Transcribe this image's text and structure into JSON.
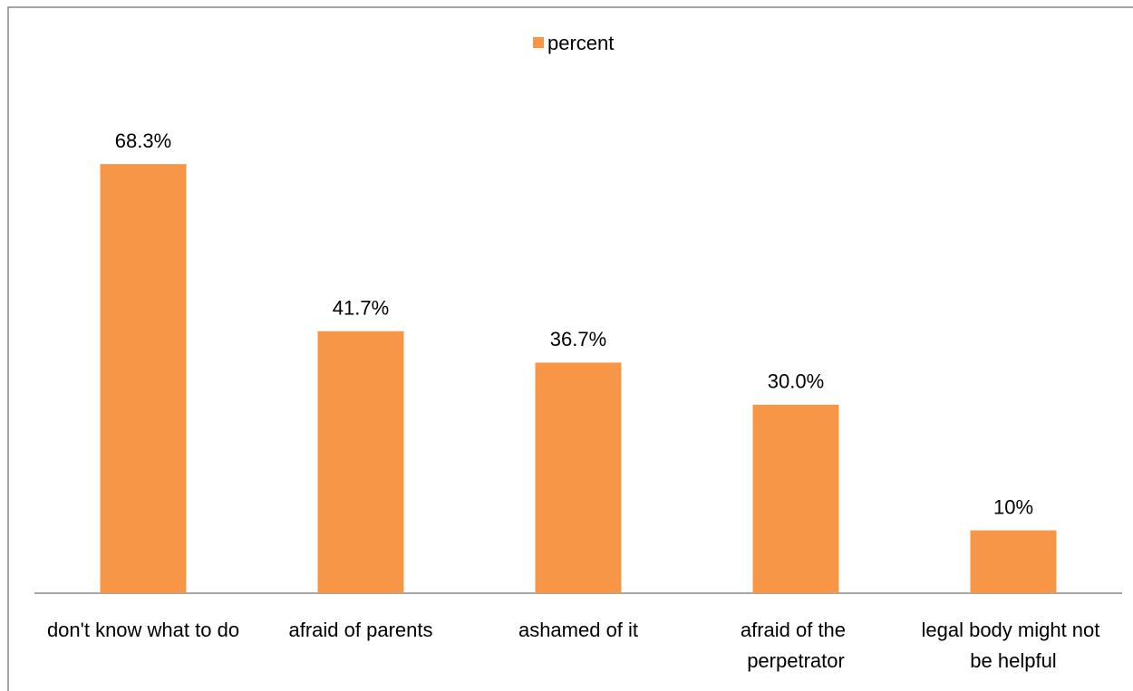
{
  "chart_data": {
    "type": "bar",
    "categories": [
      "don't know what to do",
      "afraid of parents",
      "ashamed of it",
      "afraid of the perpetrator",
      "legal body might not be helpful"
    ],
    "series": [
      {
        "name": "percent",
        "color": "#f79646",
        "values": [
          68.3,
          41.7,
          36.7,
          30.0,
          10
        ],
        "value_labels": [
          "68.3%",
          "41.7%",
          "36.7%",
          "30.0%",
          "10%"
        ]
      }
    ],
    "ylim": [
      0,
      80
    ],
    "legend": "top"
  }
}
